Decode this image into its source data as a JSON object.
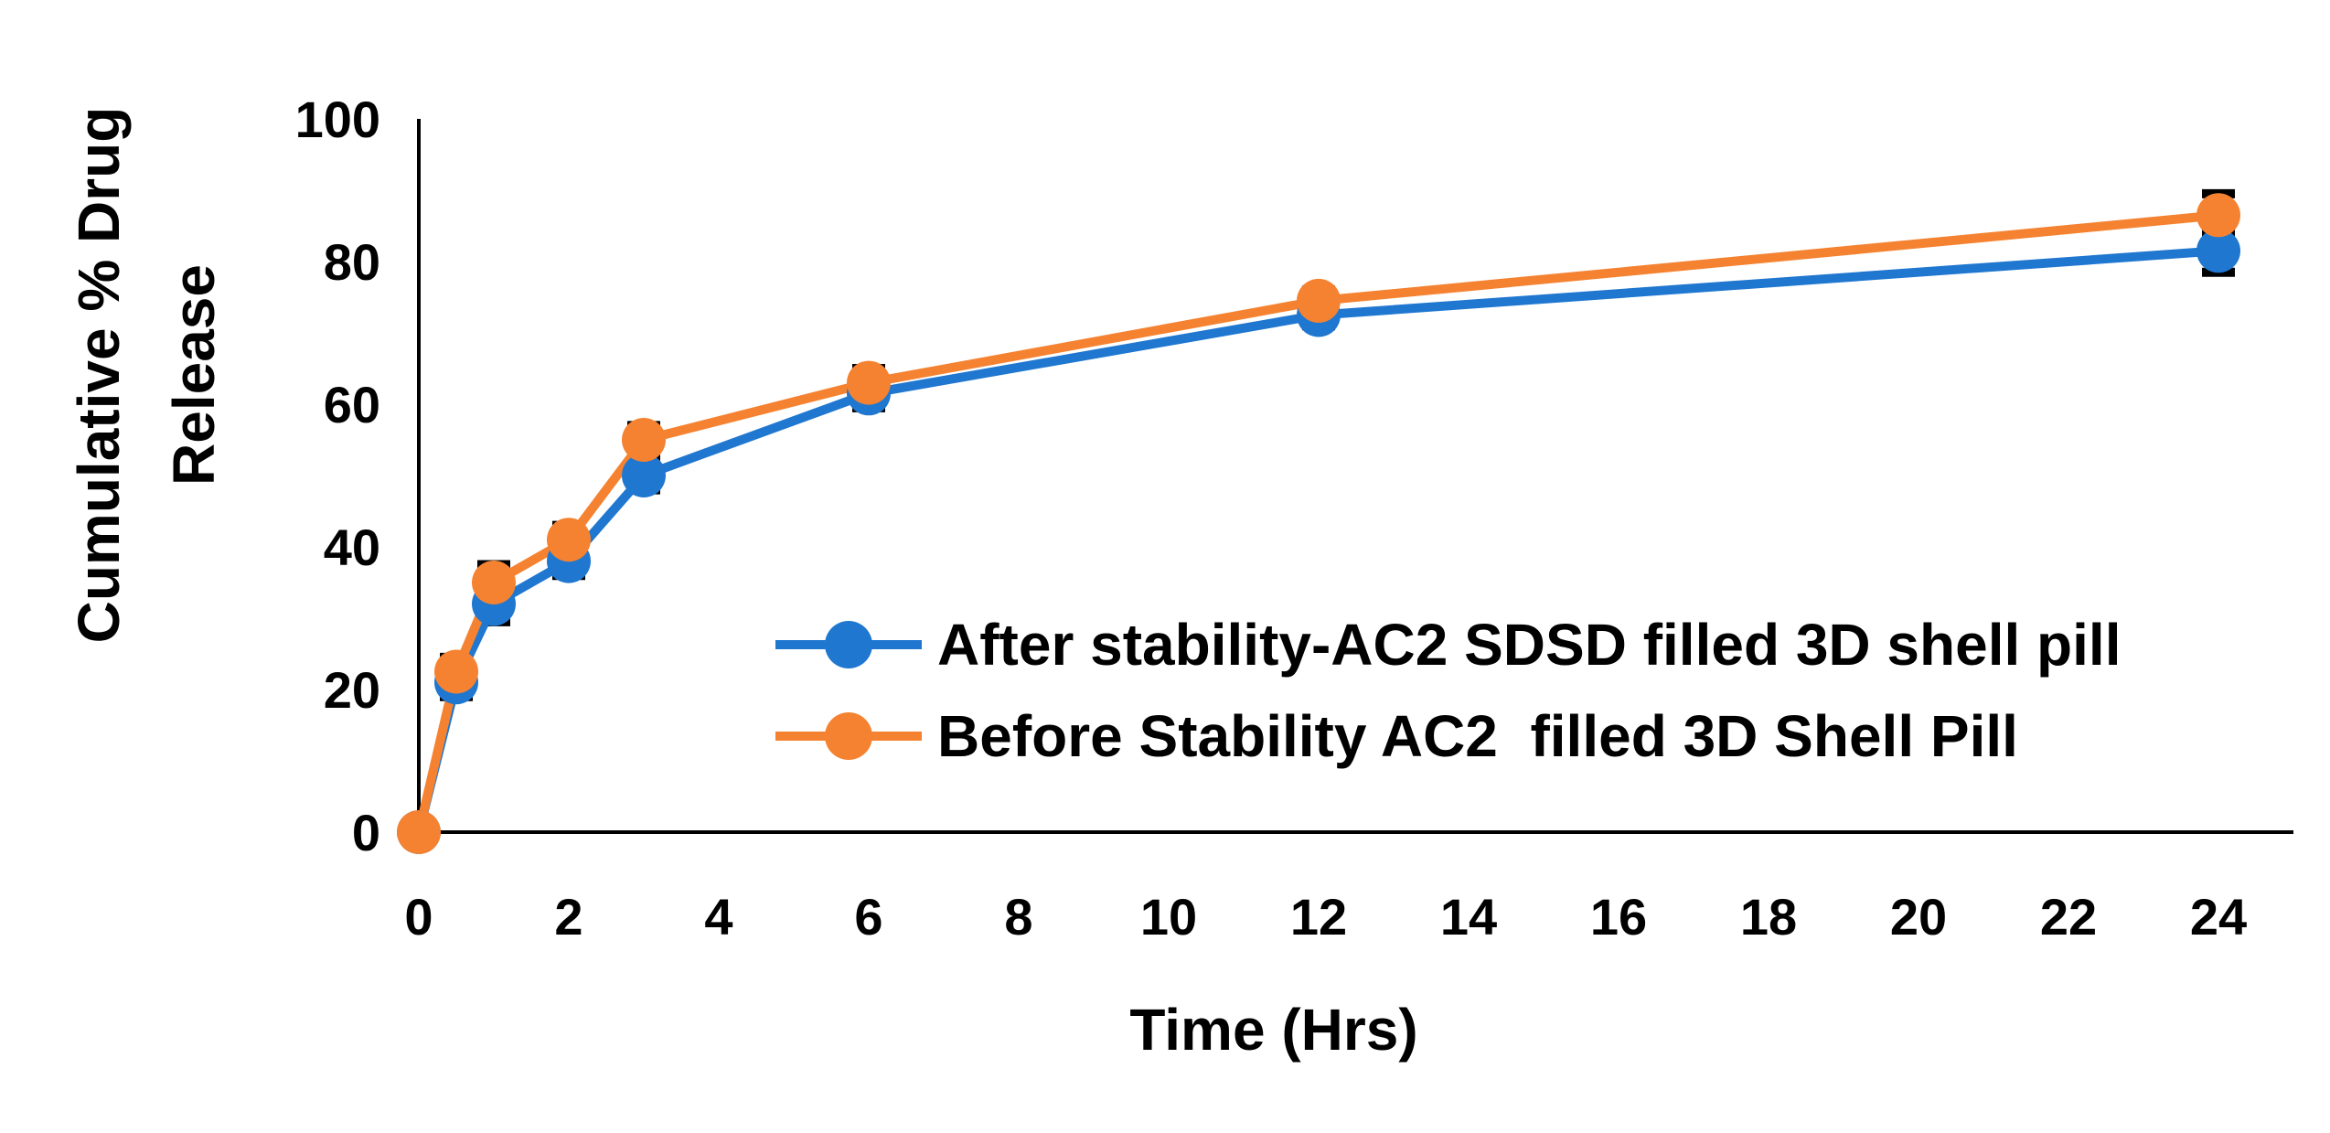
{
  "chart_data": {
    "type": "line",
    "title": "",
    "xlabel": "Time (Hrs)",
    "ylabel_lines": [
      "Cumulative % Drug",
      "Release"
    ],
    "xlim": [
      0,
      25
    ],
    "ylim": [
      0,
      100
    ],
    "x_ticks": [
      0,
      2,
      4,
      6,
      8,
      10,
      12,
      14,
      16,
      18,
      20,
      22,
      24
    ],
    "y_ticks": [
      0,
      20,
      40,
      60,
      80,
      100
    ],
    "grid": false,
    "legend_position": "center-right",
    "series": [
      {
        "name": "After stability-AC2 SDSD filled 3D shell pill",
        "color": "#1f77d0",
        "x": [
          0,
          0.5,
          1,
          2,
          3,
          6,
          12,
          24
        ],
        "values": [
          0,
          21,
          32,
          38,
          50,
          61.5,
          72.5,
          81.5
        ],
        "errors": [
          0,
          2,
          2.5,
          2,
          2,
          2,
          1.5,
          3
        ]
      },
      {
        "name": "Before Stability AC2  filled 3D Shell Pill",
        "color": "#f58231",
        "x": [
          0,
          0.5,
          1,
          2,
          3,
          6,
          12,
          24
        ],
        "values": [
          0,
          22.5,
          35,
          41,
          55,
          63,
          74.5,
          86.5
        ],
        "errors": [
          0,
          2,
          2.5,
          2,
          2,
          2,
          1.5,
          3
        ]
      }
    ]
  }
}
